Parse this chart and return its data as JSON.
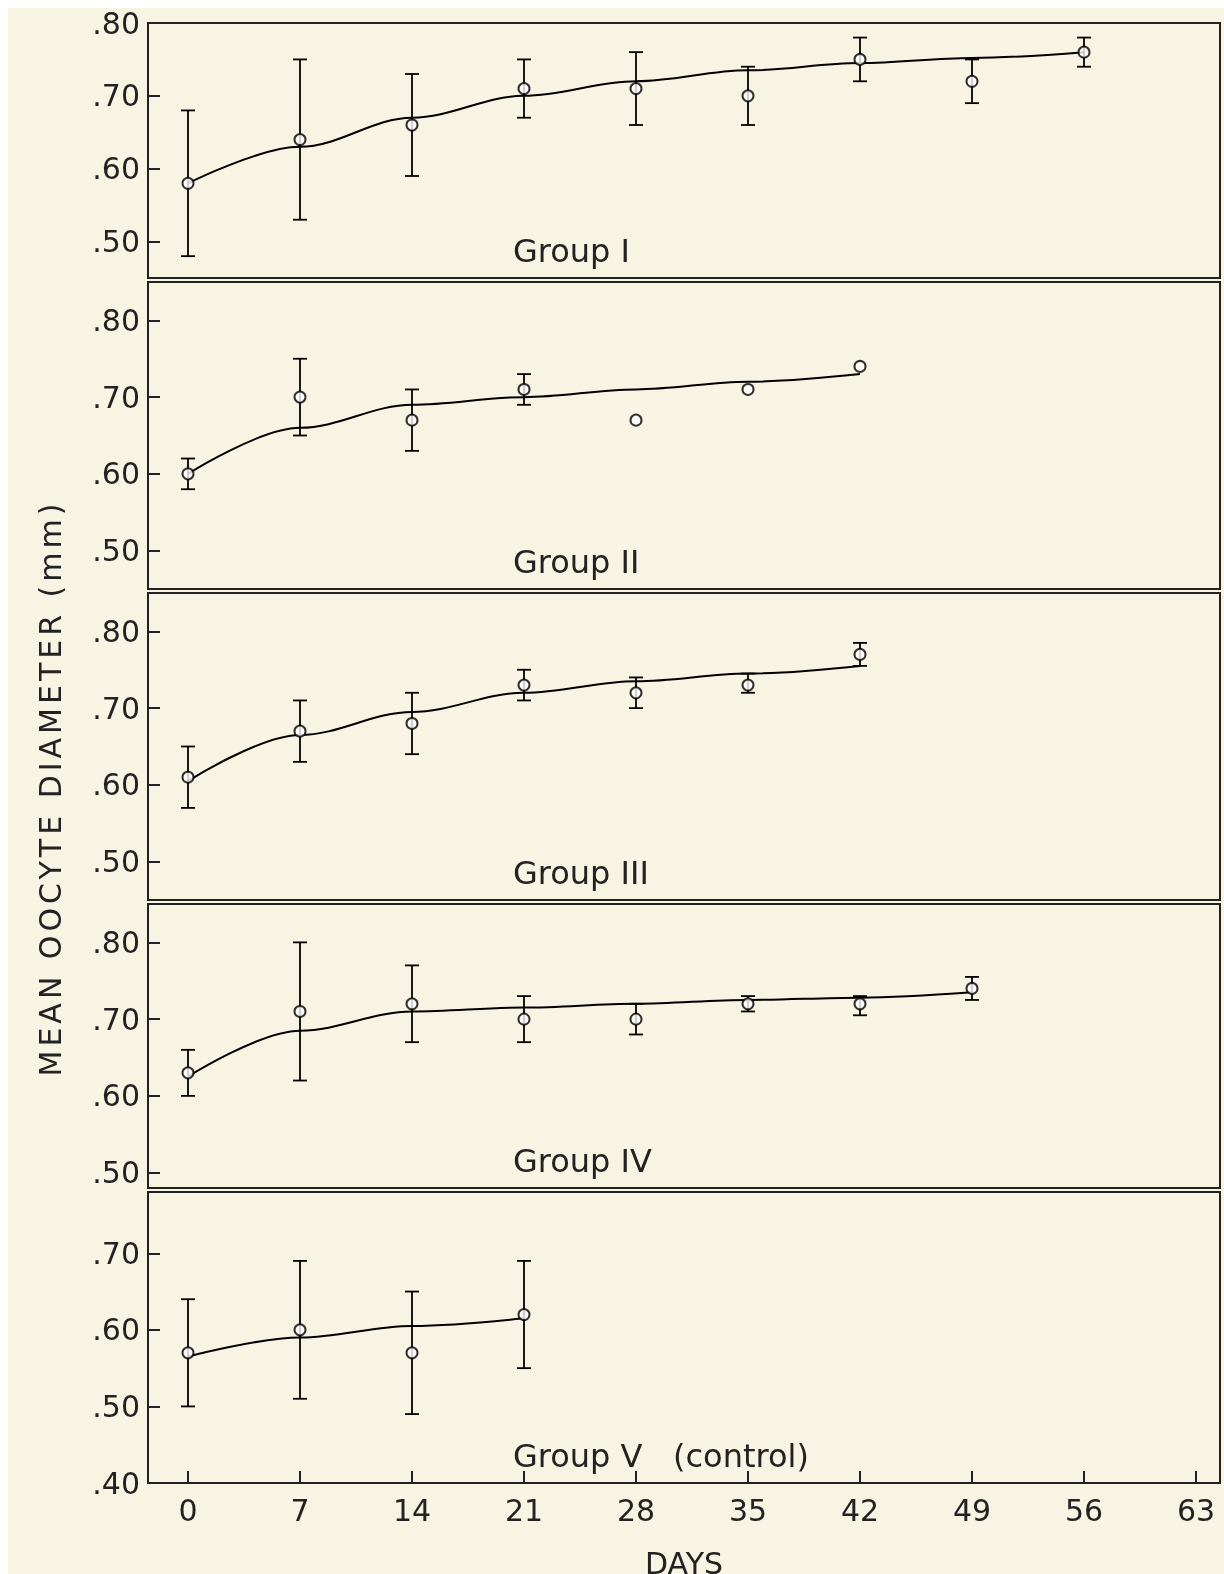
{
  "chart_data": [
    {
      "type": "scatter",
      "title": "Group I",
      "grid": false,
      "tick_labels": "y",
      "xlim": [
        -2.5,
        64.5
      ],
      "ylim": [
        0.45,
        0.8
      ],
      "yticks": [
        {
          "value": 0.5,
          "label": ".50"
        },
        {
          "value": 0.6,
          "label": ".60"
        },
        {
          "value": 0.7,
          "label": ".70"
        },
        {
          "value": 0.8,
          "label": ".80"
        }
      ],
      "series": [
        {
          "marker": "circle",
          "color": "#000000",
          "x": [
            0,
            7,
            14,
            21,
            28,
            35,
            42,
            49,
            56
          ],
          "values": [
            0.58,
            0.64,
            0.66,
            0.71,
            0.71,
            0.7,
            0.75,
            0.72,
            0.76
          ],
          "errors": [
            [
              0.48,
              0.68
            ],
            [
              0.53,
              0.75
            ],
            [
              0.59,
              0.73
            ],
            [
              0.67,
              0.75
            ],
            [
              0.66,
              0.76
            ],
            [
              0.66,
              0.74
            ],
            [
              0.72,
              0.78
            ],
            [
              0.69,
              0.75
            ],
            [
              0.74,
              0.78
            ]
          ]
        },
        {
          "type": "line",
          "marker": "none",
          "color": "#000000",
          "x": [
            0,
            7,
            14,
            21,
            28,
            35,
            42,
            49,
            56
          ],
          "values": [
            0.58,
            0.63,
            0.67,
            0.7,
            0.72,
            0.735,
            0.745,
            0.752,
            0.76
          ]
        }
      ]
    },
    {
      "type": "scatter",
      "title": "Group II",
      "grid": false,
      "tick_labels": "y",
      "xlim": [
        -2.5,
        64.5
      ],
      "ylim": [
        0.45,
        0.85
      ],
      "yticks": [
        {
          "value": 0.5,
          "label": ".50"
        },
        {
          "value": 0.6,
          "label": ".60"
        },
        {
          "value": 0.7,
          "label": ".70"
        },
        {
          "value": 0.8,
          "label": ".80"
        }
      ],
      "series": [
        {
          "marker": "circle",
          "color": "#000000",
          "x": [
            0,
            7,
            14,
            21,
            28,
            35,
            42
          ],
          "values": [
            0.6,
            0.7,
            0.67,
            0.71,
            0.67,
            0.71,
            0.74
          ],
          "errors": [
            [
              0.58,
              0.62
            ],
            [
              0.65,
              0.75
            ],
            [
              0.63,
              0.71
            ],
            [
              0.69,
              0.73
            ],
            null,
            null,
            null
          ]
        },
        {
          "type": "line",
          "marker": "none",
          "color": "#000000",
          "x": [
            0,
            7,
            14,
            21,
            28,
            35,
            42
          ],
          "values": [
            0.6,
            0.66,
            0.69,
            0.7,
            0.71,
            0.72,
            0.73
          ]
        }
      ]
    },
    {
      "type": "scatter",
      "title": "Group III",
      "ylabel": "MEAN OOCYTE DIAMETER (mm)",
      "grid": false,
      "tick_labels": "y",
      "xlim": [
        -2.5,
        64.5
      ],
      "ylim": [
        0.45,
        0.85
      ],
      "yticks": [
        {
          "value": 0.5,
          "label": ".50"
        },
        {
          "value": 0.6,
          "label": ".60"
        },
        {
          "value": 0.7,
          "label": ".70"
        },
        {
          "value": 0.8,
          "label": ".80"
        }
      ],
      "series": [
        {
          "marker": "circle",
          "color": "#000000",
          "x": [
            0,
            7,
            14,
            21,
            28,
            35,
            42
          ],
          "values": [
            0.61,
            0.67,
            0.68,
            0.73,
            0.72,
            0.73,
            0.77
          ],
          "errors": [
            [
              0.57,
              0.65
            ],
            [
              0.63,
              0.71
            ],
            [
              0.64,
              0.72
            ],
            [
              0.71,
              0.75
            ],
            [
              0.7,
              0.74
            ],
            [
              0.72,
              0.745
            ],
            [
              0.755,
              0.785
            ]
          ]
        },
        {
          "type": "line",
          "marker": "none",
          "color": "#000000",
          "x": [
            0,
            7,
            14,
            21,
            28,
            35,
            42
          ],
          "values": [
            0.605,
            0.665,
            0.695,
            0.72,
            0.735,
            0.745,
            0.755
          ]
        }
      ]
    },
    {
      "type": "scatter",
      "title": "Group IV",
      "grid": false,
      "tick_labels": "y",
      "xlim": [
        -2.5,
        64.5
      ],
      "ylim": [
        0.48,
        0.85
      ],
      "yticks": [
        {
          "value": 0.5,
          "label": ".50"
        },
        {
          "value": 0.6,
          "label": ".60"
        },
        {
          "value": 0.7,
          "label": ".70"
        },
        {
          "value": 0.8,
          "label": ".80"
        }
      ],
      "series": [
        {
          "marker": "circle",
          "color": "#000000",
          "x": [
            0,
            7,
            14,
            21,
            28,
            35,
            42,
            49
          ],
          "values": [
            0.63,
            0.71,
            0.72,
            0.7,
            0.7,
            0.72,
            0.72,
            0.74
          ],
          "errors": [
            [
              0.6,
              0.66
            ],
            [
              0.62,
              0.8
            ],
            [
              0.67,
              0.77
            ],
            [
              0.67,
              0.73
            ],
            [
              0.68,
              0.72
            ],
            [
              0.71,
              0.73
            ],
            [
              0.705,
              0.73
            ],
            [
              0.725,
              0.755
            ]
          ]
        },
        {
          "type": "line",
          "marker": "none",
          "color": "#000000",
          "x": [
            0,
            7,
            14,
            21,
            28,
            35,
            42,
            49
          ],
          "values": [
            0.625,
            0.685,
            0.71,
            0.715,
            0.72,
            0.725,
            0.728,
            0.735
          ]
        }
      ]
    },
    {
      "type": "scatter",
      "title": "Group V   (control)",
      "xlabel": "DAYS",
      "grid": false,
      "xlim": [
        -2.5,
        64.5
      ],
      "ylim": [
        0.4,
        0.78
      ],
      "xticks": [
        0,
        7,
        14,
        21,
        28,
        35,
        42,
        49,
        56,
        63
      ],
      "yticks": [
        {
          "value": 0.4,
          "label": ".40"
        },
        {
          "value": 0.5,
          "label": ".50"
        },
        {
          "value": 0.6,
          "label": ".60"
        },
        {
          "value": 0.7,
          "label": ".70"
        }
      ],
      "series": [
        {
          "marker": "circle",
          "color": "#000000",
          "x": [
            0,
            7,
            14,
            21
          ],
          "values": [
            0.57,
            0.6,
            0.57,
            0.62
          ],
          "errors": [
            [
              0.5,
              0.64
            ],
            [
              0.51,
              0.69
            ],
            [
              0.49,
              0.65
            ],
            [
              0.55,
              0.69
            ]
          ]
        },
        {
          "type": "line",
          "marker": "none",
          "color": "#000000",
          "x": [
            0,
            7,
            14,
            21
          ],
          "values": [
            0.565,
            0.59,
            0.605,
            0.615
          ]
        }
      ]
    }
  ]
}
